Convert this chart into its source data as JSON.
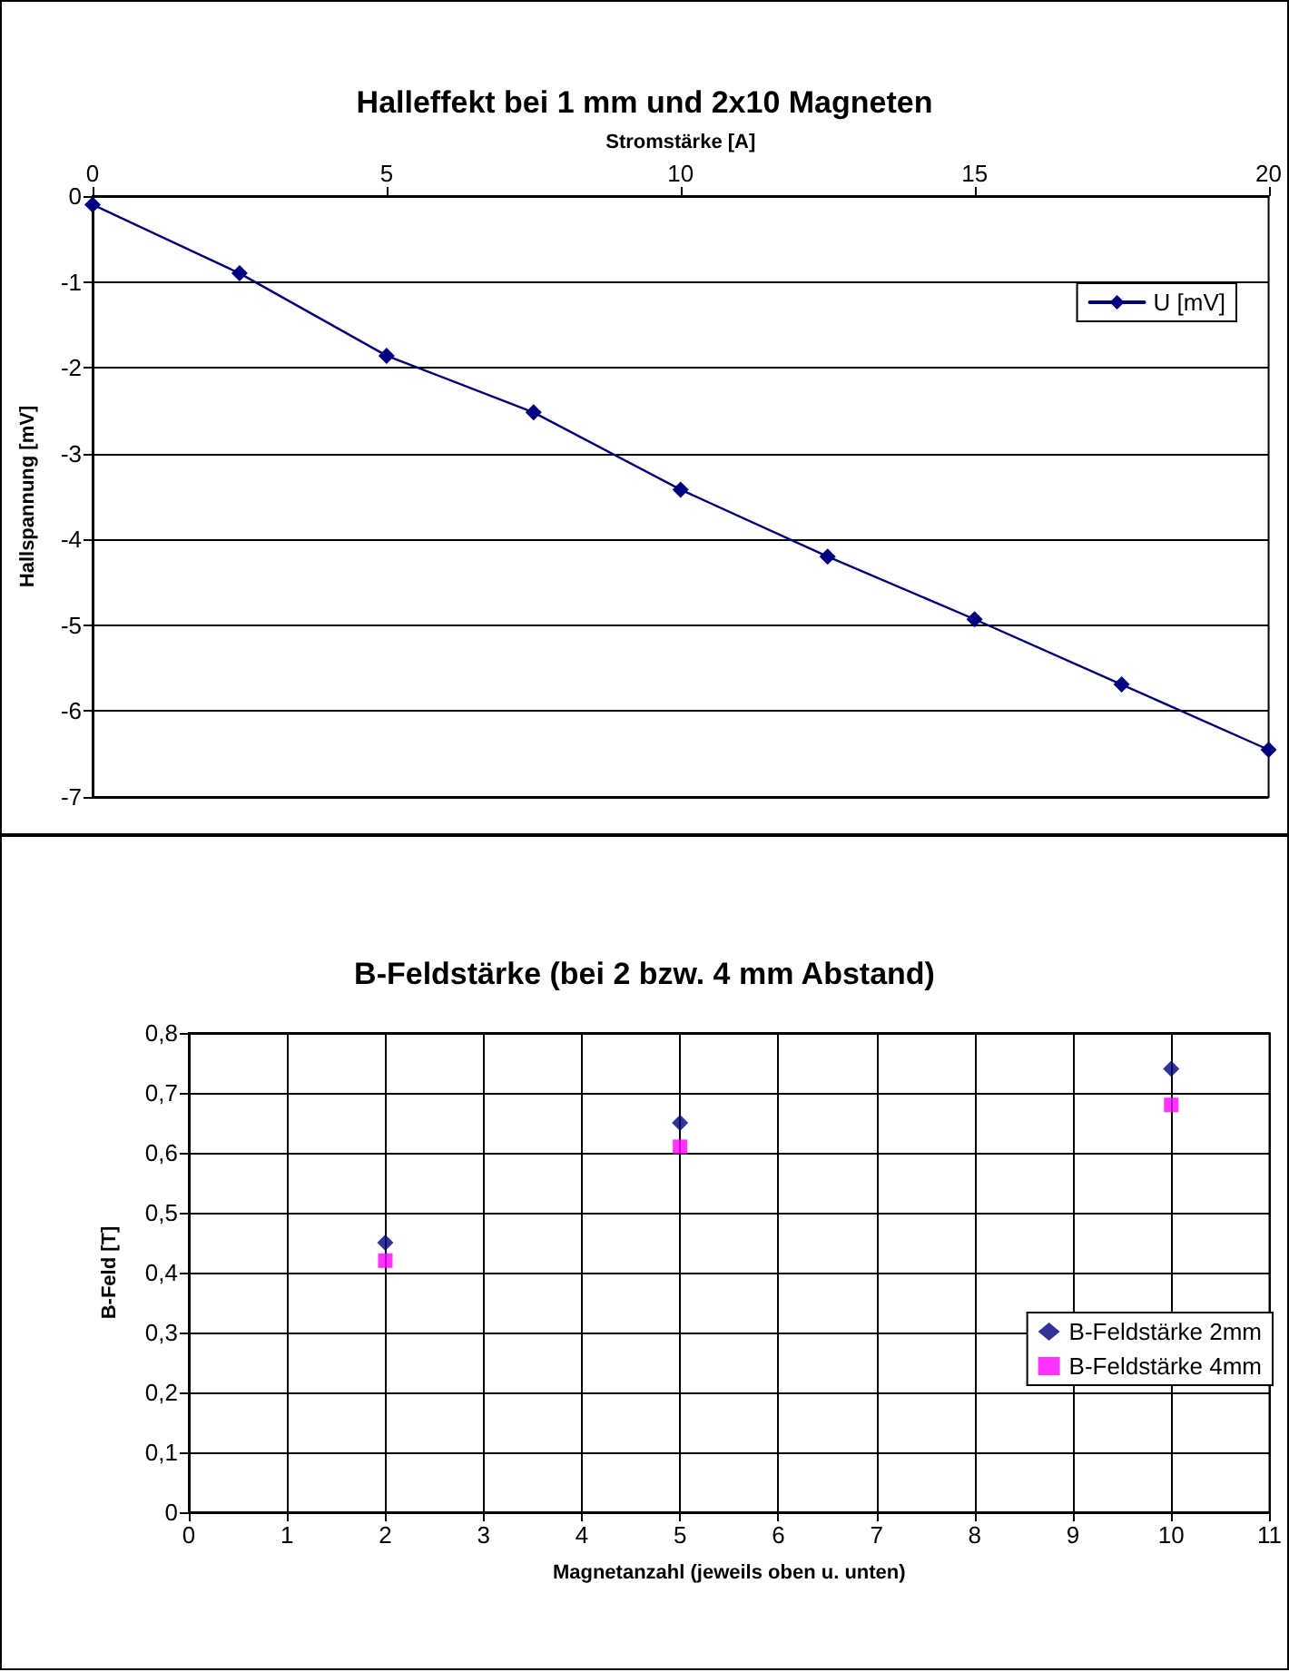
{
  "chart_data": [
    {
      "type": "line",
      "title": "Halleffekt bei 1 mm und 2x10 Magneten",
      "xlabel": "Stromstärke [A]",
      "ylabel": "Hallspannung [mV]",
      "x": [
        0,
        2.5,
        5,
        7.5,
        10,
        12.5,
        15,
        17.5,
        20
      ],
      "series": [
        {
          "name": "U [mV]",
          "color": "#000080",
          "values": [
            -0.1,
            -0.9,
            -1.86,
            -2.52,
            -3.42,
            -4.2,
            -4.93,
            -5.69,
            -6.45
          ]
        }
      ],
      "xlim": [
        0,
        20
      ],
      "xticks": [
        0,
        5,
        10,
        15,
        20
      ],
      "ylim": [
        -7,
        0
      ],
      "yticks": [
        -7,
        -6,
        -5,
        -4,
        -3,
        -2,
        -1,
        0
      ],
      "grid": "y",
      "legend": "top right",
      "marker": "diamond",
      "line_style": "solid"
    },
    {
      "type": "scatter",
      "title": "B-Feldstärke (bei 2 bzw. 4 mm Abstand)",
      "xlabel": "Magnetanzahl (jeweils oben u. unten)",
      "ylabel": "B-Feld [T]",
      "x": [
        2,
        5,
        10
      ],
      "series": [
        {
          "name": "B-Feldstärke 2mm",
          "color": "#000080",
          "marker": "diamond",
          "values": [
            0.45,
            0.65,
            0.74
          ]
        },
        {
          "name": "B-Feldstärke 4mm",
          "color": "#ff00ff",
          "marker": "square",
          "values": [
            0.42,
            0.61,
            0.68
          ]
        }
      ],
      "xlim": [
        0,
        11
      ],
      "xticks": [
        0,
        1,
        2,
        3,
        4,
        5,
        6,
        7,
        8,
        9,
        10,
        11
      ],
      "ylim": [
        0,
        0.8
      ],
      "yticks": [
        0,
        {
          "value": 0.1,
          "label": "0,1"
        },
        {
          "value": 0.2,
          "label": "0,2"
        },
        {
          "value": 0.3,
          "label": "0,3"
        },
        {
          "value": 0.4,
          "label": "0,4"
        },
        {
          "value": 0.5,
          "label": "0,5"
        },
        {
          "value": 0.6,
          "label": "0,6"
        },
        {
          "value": 0.7,
          "label": "0,7"
        },
        {
          "value": 0.8,
          "label": "0,8"
        }
      ],
      "grid": true,
      "legend": "right"
    }
  ]
}
